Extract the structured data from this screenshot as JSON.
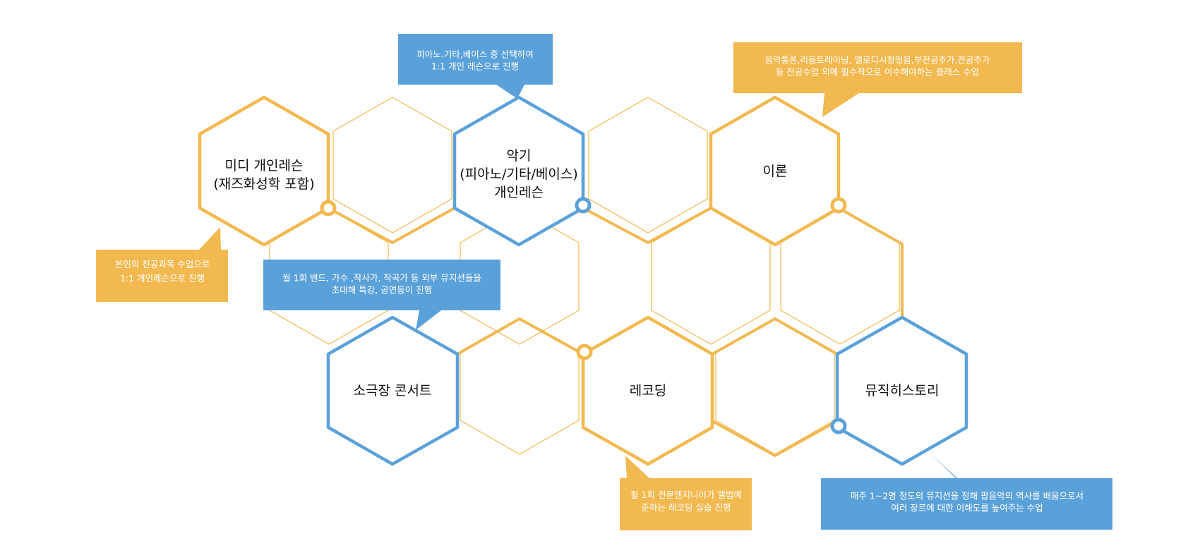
{
  "colors": {
    "yellow": "#f2b950",
    "blue": "#5ba1d9",
    "label": "#111111",
    "callout_text": "#ffffff"
  },
  "hexagons": {
    "midi": {
      "lines": [
        "미디 개인레슨",
        "(재즈화성학 포함)"
      ],
      "color": "yellow"
    },
    "instrument": {
      "lines": [
        "악기",
        "(피아노/기타/베이스)",
        "개인레슨"
      ],
      "color": "blue"
    },
    "theory": {
      "lines": [
        "이론"
      ],
      "color": "yellow"
    },
    "concert": {
      "lines": [
        "소극장 콘서트"
      ],
      "color": "blue"
    },
    "recording": {
      "lines": [
        "레코딩"
      ],
      "color": "yellow"
    },
    "history": {
      "lines": [
        "뮤직히스토리"
      ],
      "color": "blue"
    }
  },
  "callouts": {
    "instrument_note": {
      "lines": [
        "피아노.기타,베이스 중 선택하여",
        "1:1 개인 레슨으로 진행"
      ],
      "color": "blue"
    },
    "theory_note": {
      "lines": [
        "음악통론,리듬트레이닝, 멜로디시창엉음,부전공추가,전공추가",
        "등 전공수업 외에 필수적으로 이수해야하는 클래스 수업"
      ],
      "color": "yellow"
    },
    "midi_note": {
      "lines": [
        "본인의 전공과목 수업으로",
        "1:1 개인레슨으로 진행"
      ],
      "color": "yellow"
    },
    "concert_note": {
      "lines": [
        "월 1회 밴드, 가수 ,작사가, 작곡가 등 외부 뮤지션들을",
        "초대해 특강, 공연등이 진행"
      ],
      "color": "blue"
    },
    "recording_note": {
      "lines": [
        "월 1회 전문엔지니어가 앨범에",
        "준하는 레코딩 실습 진행"
      ],
      "color": "yellow"
    },
    "history_note": {
      "lines": [
        "매주 1~2명 정도의 뮤지션을 정해 팝음악의 역사를 배움으로서",
        "여러 장르에 대한 이해도를 높여주는 수업"
      ],
      "color": "blue"
    }
  }
}
